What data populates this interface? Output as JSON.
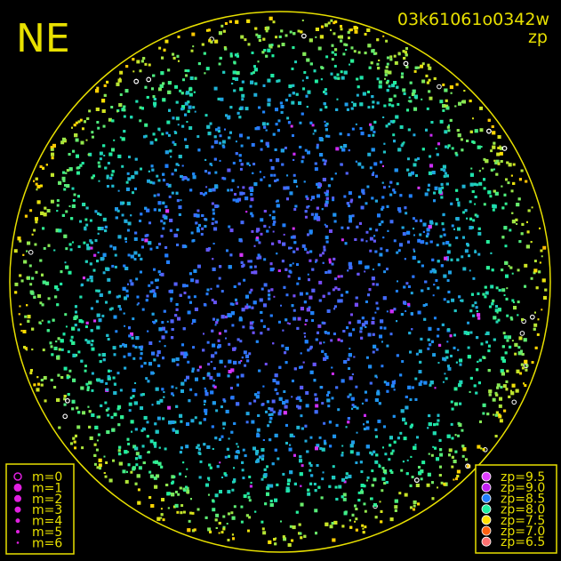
{
  "chart_data": {
    "type": "scatter",
    "corner_label": "NE",
    "title": "03k61061o0342w",
    "subtitle": "zp",
    "color_variable": "zp",
    "size_variable": "m",
    "size_legend": {
      "position": "bottom-left",
      "entries": [
        "m=0",
        "m=1",
        "m=2",
        "m=3",
        "m=4",
        "m=5",
        "m=6"
      ]
    },
    "color_legend": {
      "position": "bottom-right",
      "entries": [
        {
          "label": "zp=9.5",
          "zp": 9.5,
          "color": "#e040ff"
        },
        {
          "label": "zp=9.0",
          "zp": 9.0,
          "color": "#c020f0"
        },
        {
          "label": "zp=8.5",
          "zp": 8.5,
          "color": "#2080ff"
        },
        {
          "label": "zp=8.0",
          "zp": 8.0,
          "color": "#20f0a0"
        },
        {
          "label": "zp=7.5",
          "zp": 7.5,
          "color": "#ffe000"
        },
        {
          "label": "zp=7.0",
          "zp": 7.0,
          "color": "#ff6010"
        },
        {
          "label": "zp=6.5",
          "zp": 6.5,
          "color": "#ff7070"
        }
      ]
    },
    "frame_color": "#e8e000",
    "background": "#000000"
  }
}
